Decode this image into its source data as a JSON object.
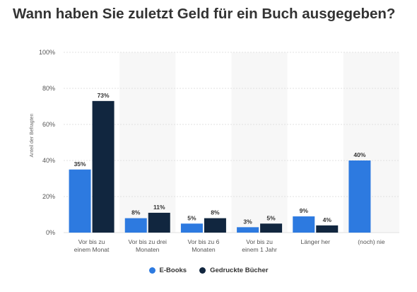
{
  "title": "Wann haben Sie zuletzt Geld für ein Buch ausgegeben?",
  "chart_data": {
    "type": "bar",
    "categories": [
      [
        "Vor bis zu",
        "einem Monat"
      ],
      [
        "Vor bis zu drei",
        "Monaten"
      ],
      [
        "Vor bis zu 6",
        "Monaten"
      ],
      [
        "Vor bis zu",
        "einem 1 Jahr"
      ],
      [
        "Länger her"
      ],
      [
        "(noch) nie"
      ]
    ],
    "series": [
      {
        "name": "E-Books",
        "color": "#2d7ae0",
        "values": [
          35,
          8,
          5,
          3,
          9,
          40
        ],
        "labels": [
          "35%",
          "8%",
          "5%",
          "3%",
          "9%",
          "40%"
        ]
      },
      {
        "name": "Gedruckte Bücher",
        "color": "#11263f",
        "values": [
          73,
          11,
          8,
          5,
          4,
          null
        ],
        "labels": [
          "73%",
          "11%",
          "8%",
          "5%",
          "4%",
          ""
        ]
      }
    ],
    "ylabel": "Anteil der Befragten",
    "ylim": [
      0,
      100
    ],
    "yticks": [
      0,
      20,
      40,
      60,
      80,
      100
    ],
    "ytick_labels": [
      "0%",
      "20%",
      "40%",
      "60%",
      "80%",
      "100%"
    ],
    "grid": true,
    "legend": "bottom-center"
  }
}
